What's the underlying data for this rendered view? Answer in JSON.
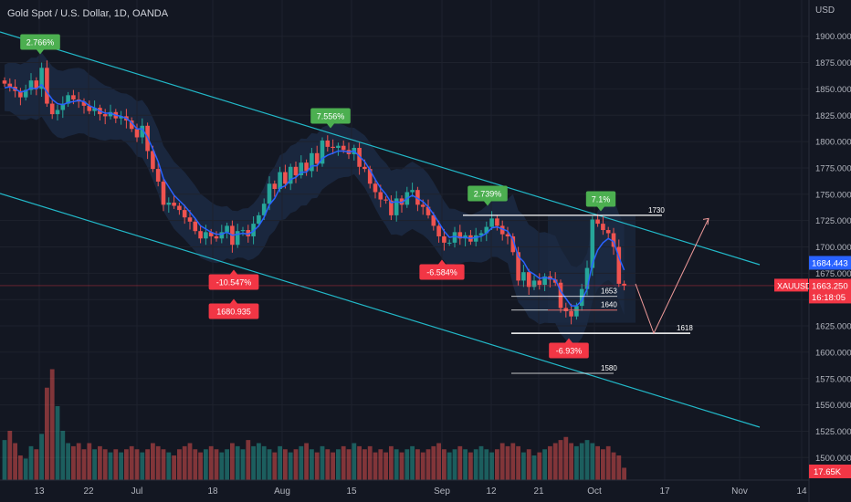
{
  "title": "Gold Spot / U.S. Dollar, 1D, OANDA",
  "currency": "USD",
  "colors": {
    "background": "#131722",
    "up": "#26a69a",
    "down": "#ef5350",
    "ma": "#2962ff",
    "channel": "#22b8c8",
    "band": "#1d2d48",
    "badge_up": "#4caf50",
    "badge_down": "#f23645",
    "current_price": "#f23645",
    "reference_price": "#2962ff"
  },
  "chart_data": {
    "type": "candlestick",
    "symbol": "XAUUSD",
    "yticks": [
      "1900.000",
      "1875.000",
      "1850.000",
      "1825.000",
      "1800.000",
      "1775.000",
      "1750.000",
      "1725.000",
      "1700.000",
      "1675.000",
      "1650.000",
      "1625.000",
      "1600.000",
      "1575.000",
      "1550.000",
      "1525.000",
      "1500.000"
    ],
    "xticks": [
      "13",
      "22",
      "Jul",
      "18",
      "Aug",
      "15",
      "Sep",
      "12",
      "21",
      "Oct",
      "17",
      "Nov",
      "14"
    ],
    "ylim": [
      1487,
      1918
    ],
    "price_pairs": [
      [
        1700,
        1700
      ],
      [
        1750,
        1750
      ]
    ],
    "closes": [
      1855,
      1852,
      1848,
      1842,
      1849,
      1858,
      1850,
      1870,
      1836,
      1826,
      1830,
      1836,
      1844,
      1840,
      1838,
      1834,
      1829,
      1832,
      1826,
      1824,
      1828,
      1822,
      1824,
      1820,
      1812,
      1804,
      1815,
      1791,
      1774,
      1762,
      1740,
      1742,
      1739,
      1735,
      1728,
      1724,
      1715,
      1708,
      1714,
      1710,
      1708,
      1714,
      1720,
      1702,
      1715,
      1716,
      1710,
      1722,
      1730,
      1741,
      1760,
      1755,
      1771,
      1760,
      1776,
      1768,
      1780,
      1772,
      1789,
      1779,
      1801,
      1795,
      1794,
      1796,
      1792,
      1788,
      1794,
      1776,
      1774,
      1760,
      1752,
      1745,
      1744,
      1730,
      1746,
      1740,
      1752,
      1754,
      1740,
      1738,
      1730,
      1720,
      1710,
      1704,
      1704,
      1714,
      1708,
      1711,
      1705,
      1711,
      1713,
      1719,
      1727,
      1720,
      1712,
      1710,
      1695,
      1668,
      1676,
      1662,
      1668,
      1664,
      1672,
      1669,
      1666,
      1642,
      1639,
      1634,
      1644,
      1660,
      1680,
      1726,
      1722,
      1716,
      1713,
      1700,
      1665,
      1663.25
    ],
    "ma": [
      1851,
      1852,
      1850,
      1847,
      1848,
      1851,
      1850,
      1854,
      1847,
      1840,
      1836,
      1835,
      1837,
      1838,
      1839,
      1838,
      1834,
      1832,
      1829,
      1827,
      1827,
      1825,
      1824,
      1822,
      1818,
      1812,
      1812,
      1804,
      1793,
      1781,
      1765,
      1757,
      1749,
      1744,
      1739,
      1733,
      1727,
      1720,
      1717,
      1714,
      1712,
      1712,
      1714,
      1711,
      1712,
      1713,
      1712,
      1715,
      1720,
      1728,
      1740,
      1746,
      1756,
      1758,
      1764,
      1766,
      1771,
      1771,
      1777,
      1777,
      1784,
      1787,
      1789,
      1791,
      1791,
      1790,
      1791,
      1786,
      1781,
      1773,
      1764,
      1756,
      1750,
      1742,
      1743,
      1742,
      1746,
      1749,
      1746,
      1743,
      1738,
      1731,
      1723,
      1715,
      1709,
      1710,
      1709,
      1709,
      1708,
      1709,
      1710,
      1713,
      1718,
      1719,
      1717,
      1715,
      1707,
      1691,
      1686,
      1677,
      1674,
      1670,
      1671,
      1670,
      1669,
      1658,
      1651,
      1644,
      1644,
      1649,
      1660,
      1684,
      1697,
      1704,
      1708,
      1705,
      1690,
      1678
    ],
    "volume": [
      13,
      16,
      12,
      8,
      7,
      11,
      10,
      15,
      30,
      36,
      24,
      16,
      12,
      11,
      12,
      10,
      12,
      10,
      11,
      10,
      9,
      10,
      9,
      10,
      11,
      10,
      9,
      10,
      12,
      11,
      10,
      9,
      8,
      10,
      11,
      12,
      10,
      9,
      10,
      11,
      10,
      9,
      10,
      12,
      11,
      10,
      13,
      11,
      12,
      11,
      10,
      9,
      11,
      10,
      9,
      10,
      11,
      12,
      10,
      9,
      11,
      10,
      9,
      10,
      11,
      10,
      12,
      11,
      10,
      11,
      9,
      10,
      9,
      11,
      10,
      9,
      10,
      11,
      10,
      9,
      10,
      11,
      12,
      10,
      9,
      10,
      11,
      10,
      9,
      10,
      11,
      10,
      9,
      10,
      12,
      11,
      12,
      11,
      9,
      10,
      8,
      9,
      10,
      11,
      12,
      13,
      14,
      12,
      11,
      12,
      13,
      12,
      11,
      10,
      11,
      9,
      8,
      4
    ],
    "annotations": [
      {
        "text": "2.766%",
        "type": "up"
      },
      {
        "text": "7.556%",
        "type": "up"
      },
      {
        "text": "2.739%",
        "type": "up"
      },
      {
        "text": "7.1%",
        "type": "up"
      },
      {
        "text": "-10.547%",
        "type": "down"
      },
      {
        "text": "1680.935",
        "type": "down"
      },
      {
        "text": "-6.584%",
        "type": "down"
      },
      {
        "text": "-6.93%",
        "type": "down"
      }
    ],
    "levels": [
      "1730",
      "1653",
      "1640",
      "1618",
      "1580"
    ],
    "price_labels": {
      "ref_price": "1684.443",
      "symbol": "XAUUSD",
      "current_price": "1663.250",
      "countdown": "16:18:05",
      "volume_value": "17.65K"
    }
  }
}
